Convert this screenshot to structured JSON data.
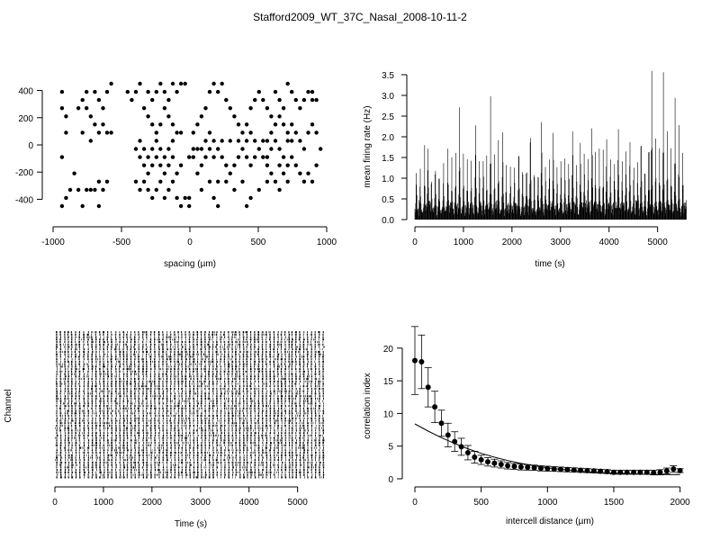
{
  "figure": {
    "title": "Stafford2009_WT_37C_Nasal_2008-10-11-2"
  },
  "chart_data": [
    {
      "id": "electrode-layout",
      "type": "scatter",
      "xlabel": "spacing (µm)",
      "ylabel": "",
      "xlim": [
        -1000,
        1000
      ],
      "ylim": [
        -450,
        450
      ],
      "xticks": [
        -1000,
        -500,
        0,
        500,
        1000
      ],
      "yticks": [
        -400,
        -200,
        0,
        200,
        400
      ],
      "grid": false,
      "points": [
        [
          -935,
          390
        ],
        [
          -935,
          270
        ],
        [
          -905,
          90
        ],
        [
          -905,
          210
        ],
        [
          -935,
          -90
        ],
        [
          -845,
          -210
        ],
        [
          -875,
          -330
        ],
        [
          -905,
          -390
        ],
        [
          -935,
          -450
        ],
        [
          -815,
          270
        ],
        [
          -785,
          330
        ],
        [
          -755,
          390
        ],
        [
          -755,
          270
        ],
        [
          -725,
          210
        ],
        [
          -695,
          390
        ],
        [
          -665,
          330
        ],
        [
          -635,
          270
        ],
        [
          -605,
          390
        ],
        [
          -575,
          450
        ],
        [
          -785,
          90
        ],
        [
          -725,
          30
        ],
        [
          -695,
          150
        ],
        [
          -665,
          90
        ],
        [
          -635,
          150
        ],
        [
          -605,
          90
        ],
        [
          -575,
          90
        ],
        [
          -815,
          -330
        ],
        [
          -755,
          -330
        ],
        [
          -725,
          -330
        ],
        [
          -695,
          -330
        ],
        [
          -665,
          -270
        ],
        [
          -635,
          -330
        ],
        [
          -605,
          -270
        ],
        [
          -785,
          -450
        ],
        [
          -665,
          -450
        ],
        [
          -455,
          390
        ],
        [
          -425,
          330
        ],
        [
          -395,
          390
        ],
        [
          -365,
          450
        ],
        [
          -305,
          390
        ],
        [
          -275,
          330
        ],
        [
          -245,
          390
        ],
        [
          -215,
          450
        ],
        [
          -185,
          390
        ],
        [
          -155,
          330
        ],
        [
          -125,
          450
        ],
        [
          -95,
          390
        ],
        [
          -65,
          450
        ],
        [
          -35,
          450
        ],
        [
          -335,
          270
        ],
        [
          -305,
          210
        ],
        [
          -275,
          150
        ],
        [
          -245,
          90
        ],
        [
          -215,
          150
        ],
        [
          -185,
          270
        ],
        [
          -155,
          210
        ],
        [
          -125,
          150
        ],
        [
          -95,
          90
        ],
        [
          -65,
          90
        ],
        [
          -395,
          -30
        ],
        [
          -365,
          30
        ],
        [
          -335,
          -30
        ],
        [
          -305,
          -90
        ],
        [
          -275,
          -30
        ],
        [
          -245,
          30
        ],
        [
          -215,
          -30
        ],
        [
          -185,
          -90
        ],
        [
          -155,
          -30
        ],
        [
          -125,
          30
        ],
        [
          -365,
          -90
        ],
        [
          -335,
          -150
        ],
        [
          -305,
          -210
        ],
        [
          -275,
          -150
        ],
        [
          -245,
          -90
        ],
        [
          -215,
          -150
        ],
        [
          -185,
          -210
        ],
        [
          -155,
          -150
        ],
        [
          -125,
          -90
        ],
        [
          -95,
          -210
        ],
        [
          -65,
          -150
        ],
        [
          -395,
          -270
        ],
        [
          -365,
          -330
        ],
        [
          -335,
          -270
        ],
        [
          -305,
          -330
        ],
        [
          -275,
          -390
        ],
        [
          -245,
          -330
        ],
        [
          -215,
          -270
        ],
        [
          -185,
          -390
        ],
        [
          -155,
          -330
        ],
        [
          -125,
          -270
        ],
        [
          -95,
          -390
        ],
        [
          -65,
          -450
        ],
        [
          -35,
          -390
        ],
        [
          -5,
          -450
        ],
        [
          -5,
          -390
        ],
        [
          25,
          90
        ],
        [
          55,
          150
        ],
        [
          85,
          210
        ],
        [
          115,
          270
        ],
        [
          145,
          390
        ],
        [
          175,
          450
        ],
        [
          205,
          390
        ],
        [
          235,
          450
        ],
        [
          265,
          330
        ],
        [
          295,
          270
        ],
        [
          325,
          210
        ],
        [
          355,
          150
        ],
        [
          385,
          90
        ],
        [
          415,
          150
        ],
        [
          445,
          270
        ],
        [
          475,
          330
        ],
        [
          505,
          390
        ],
        [
          535,
          330
        ],
        [
          565,
          270
        ],
        [
          595,
          210
        ],
        [
          55,
          -210
        ],
        [
          85,
          -150
        ],
        [
          115,
          -90
        ],
        [
          145,
          -30
        ],
        [
          175,
          -90
        ],
        [
          205,
          -30
        ],
        [
          235,
          -90
        ],
        [
          265,
          -150
        ],
        [
          295,
          -210
        ],
        [
          325,
          -150
        ],
        [
          355,
          -90
        ],
        [
          385,
          -30
        ],
        [
          415,
          -90
        ],
        [
          445,
          -150
        ],
        [
          475,
          -90
        ],
        [
          505,
          -30
        ],
        [
          535,
          -90
        ],
        [
          565,
          -150
        ],
        [
          595,
          -210
        ],
        [
          85,
          -330
        ],
        [
          145,
          -270
        ],
        [
          205,
          -270
        ],
        [
          265,
          -270
        ],
        [
          325,
          -330
        ],
        [
          385,
          -270
        ],
        [
          445,
          -390
        ],
        [
          505,
          -330
        ],
        [
          565,
          -270
        ],
        [
          625,
          -270
        ],
        [
          175,
          -390
        ],
        [
          205,
          -450
        ],
        [
          415,
          -450
        ],
        [
          625,
          390
        ],
        [
          655,
          330
        ],
        [
          685,
          270
        ],
        [
          715,
          450
        ],
        [
          745,
          390
        ],
        [
          775,
          330
        ],
        [
          805,
          270
        ],
        [
          835,
          330
        ],
        [
          865,
          390
        ],
        [
          895,
          330
        ],
        [
          925,
          330
        ],
        [
          895,
          390
        ],
        [
          655,
          210
        ],
        [
          685,
          150
        ],
        [
          715,
          90
        ],
        [
          745,
          150
        ],
        [
          775,
          90
        ],
        [
          805,
          30
        ],
        [
          835,
          -30
        ],
        [
          865,
          90
        ],
        [
          895,
          150
        ],
        [
          925,
          90
        ],
        [
          955,
          -30
        ],
        [
          655,
          -30
        ],
        [
          685,
          -90
        ],
        [
          715,
          -150
        ],
        [
          745,
          -90
        ],
        [
          775,
          -150
        ],
        [
          805,
          -210
        ],
        [
          835,
          -270
        ],
        [
          865,
          -210
        ],
        [
          895,
          -270
        ],
        [
          925,
          -150
        ],
        [
          655,
          -330
        ],
        [
          715,
          -270
        ],
        [
          595,
          90
        ],
        [
          625,
          150
        ],
        [
          565,
          30
        ],
        [
          535,
          30
        ],
        [
          475,
          30
        ],
        [
          445,
          90
        ],
        [
          415,
          30
        ],
        [
          355,
          30
        ],
        [
          295,
          30
        ],
        [
          235,
          30
        ],
        [
          175,
          30
        ],
        [
          145,
          90
        ],
        [
          115,
          30
        ],
        [
          85,
          -30
        ],
        [
          25,
          -90
        ],
        [
          55,
          -30
        ],
        [
          25,
          -30
        ],
        [
          -5,
          -90
        ],
        [
          655,
          -150
        ],
        [
          685,
          -210
        ],
        [
          715,
          30
        ],
        [
          745,
          30
        ],
        [
          625,
          30
        ],
        [
          595,
          -30
        ],
        [
          565,
          -90
        ]
      ]
    },
    {
      "id": "firing-rate",
      "type": "bar",
      "xlabel": "time (s)",
      "ylabel": "mean firing rate (Hz)",
      "xlim": [
        0,
        5600
      ],
      "ylim": [
        0,
        3.5
      ],
      "xticks": [
        0,
        1000,
        2000,
        3000,
        4000,
        5000
      ],
      "yticks": [
        0.0,
        0.5,
        1.0,
        1.5,
        2.0,
        2.5,
        3.0,
        3.5
      ],
      "ytick_labels": [
        "0.0",
        "0.5",
        "1.0",
        "1.5",
        "2.0",
        "2.5",
        "3.0",
        "3.5"
      ],
      "bin_width_s": 8,
      "peaks": [
        [
          30,
          1.3
        ],
        [
          110,
          1.4
        ],
        [
          200,
          1.7
        ],
        [
          270,
          2.05
        ],
        [
          340,
          1.2
        ],
        [
          420,
          1.6
        ],
        [
          500,
          1.4
        ],
        [
          590,
          1.5
        ],
        [
          680,
          1.65
        ],
        [
          760,
          1.4
        ],
        [
          840,
          1.5
        ],
        [
          920,
          2.6
        ],
        [
          1000,
          1.5
        ],
        [
          1080,
          1.35
        ],
        [
          1160,
          1.4
        ],
        [
          1250,
          2.75
        ],
        [
          1330,
          1.6
        ],
        [
          1410,
          1.7
        ],
        [
          1480,
          1.5
        ],
        [
          1560,
          2.85
        ],
        [
          1640,
          1.5
        ],
        [
          1720,
          1.8
        ],
        [
          1810,
          2.5
        ],
        [
          1880,
          1.3
        ],
        [
          1970,
          1.4
        ],
        [
          2050,
          1.4
        ],
        [
          2140,
          2.25
        ],
        [
          2220,
          1.6
        ],
        [
          2300,
          1.5
        ],
        [
          2380,
          2.75
        ],
        [
          2460,
          1.4
        ],
        [
          2540,
          1.5
        ],
        [
          2610,
          2.75
        ],
        [
          2690,
          1.5
        ],
        [
          2770,
          1.7
        ],
        [
          2850,
          2.55
        ],
        [
          2930,
          1.5
        ],
        [
          3010,
          1.6
        ],
        [
          3090,
          1.7
        ],
        [
          3170,
          1.55
        ],
        [
          3250,
          2.6
        ],
        [
          3330,
          1.5
        ],
        [
          3410,
          2.2
        ],
        [
          3490,
          1.8
        ],
        [
          3570,
          1.7
        ],
        [
          3650,
          2.65
        ],
        [
          3720,
          1.6
        ],
        [
          3800,
          1.6
        ],
        [
          3880,
          1.65
        ],
        [
          3950,
          2.2
        ],
        [
          4030,
          1.75
        ],
        [
          4110,
          1.6
        ],
        [
          4190,
          2.55
        ],
        [
          4270,
          1.6
        ],
        [
          4350,
          1.9
        ],
        [
          4430,
          2.25
        ],
        [
          4510,
          1.5
        ],
        [
          4590,
          1.55
        ],
        [
          4660,
          2.6
        ],
        [
          4740,
          1.5
        ],
        [
          4820,
          2.35
        ],
        [
          4880,
          3.55
        ],
        [
          4960,
          1.9
        ],
        [
          5040,
          1.7
        ],
        [
          5120,
          3.5
        ],
        [
          5200,
          2.0
        ],
        [
          5280,
          1.7
        ],
        [
          5360,
          2.8
        ],
        [
          5440,
          2.25
        ],
        [
          5520,
          1.6
        ]
      ]
    },
    {
      "id": "spike-raster",
      "type": "scatter",
      "xlabel": "Time (s)",
      "ylabel": "Channel",
      "xlim": [
        0,
        5600
      ],
      "xticks": [
        0,
        1000,
        2000,
        3000,
        4000,
        5000
      ],
      "channel_count": 60,
      "burst_times": [
        30,
        110,
        200,
        270,
        340,
        420,
        500,
        590,
        680,
        760,
        840,
        920,
        1000,
        1080,
        1160,
        1250,
        1330,
        1410,
        1480,
        1560,
        1640,
        1720,
        1810,
        1880,
        1970,
        2050,
        2140,
        2220,
        2300,
        2380,
        2460,
        2540,
        2610,
        2690,
        2770,
        2850,
        2930,
        3010,
        3090,
        3170,
        3250,
        3330,
        3410,
        3490,
        3570,
        3650,
        3720,
        3800,
        3880,
        3950,
        4030,
        4110,
        4190,
        4270,
        4350,
        4430,
        4510,
        4590,
        4660,
        4740,
        4820,
        4880,
        4960,
        5040,
        5120,
        5200,
        5280,
        5360,
        5440,
        5520
      ]
    },
    {
      "id": "correlation-index",
      "type": "scatter",
      "xlabel": "intercell distance (µm)",
      "ylabel": "correlation index",
      "xlim": [
        0,
        2050
      ],
      "ylim": [
        0,
        23
      ],
      "xticks": [
        0,
        500,
        1000,
        1500,
        2000
      ],
      "yticks": [
        0,
        5,
        10,
        15,
        20
      ],
      "x": [
        0,
        50,
        100,
        150,
        200,
        250,
        300,
        350,
        400,
        450,
        500,
        550,
        600,
        650,
        700,
        750,
        800,
        850,
        900,
        950,
        1000,
        1050,
        1100,
        1150,
        1200,
        1250,
        1300,
        1350,
        1400,
        1450,
        1500,
        1550,
        1600,
        1650,
        1700,
        1750,
        1800,
        1850,
        1900,
        1950,
        2000
      ],
      "y": [
        18.1,
        17.9,
        14.0,
        11.0,
        8.5,
        6.7,
        5.7,
        4.9,
        4.0,
        3.3,
        2.9,
        2.6,
        2.4,
        2.2,
        2.0,
        1.9,
        1.8,
        1.75,
        1.7,
        1.6,
        1.55,
        1.5,
        1.45,
        1.4,
        1.35,
        1.3,
        1.25,
        1.2,
        1.15,
        1.1,
        1.0,
        1.0,
        1.0,
        1.0,
        1.0,
        1.0,
        0.95,
        1.0,
        1.2,
        1.5,
        1.25
      ],
      "yerr": [
        5.2,
        4.1,
        3.0,
        2.4,
        2.0,
        1.8,
        1.5,
        1.3,
        1.1,
        0.9,
        0.7,
        0.65,
        0.6,
        0.55,
        0.5,
        0.45,
        0.45,
        0.42,
        0.4,
        0.4,
        0.38,
        0.36,
        0.35,
        0.34,
        0.33,
        0.32,
        0.31,
        0.3,
        0.3,
        0.3,
        0.3,
        0.3,
        0.3,
        0.3,
        0.3,
        0.3,
        0.35,
        0.4,
        0.45,
        0.5,
        0.3
      ],
      "fit_line": [
        [
          0,
          8.4
        ],
        [
          100,
          7.3
        ],
        [
          200,
          6.3
        ],
        [
          300,
          5.4
        ],
        [
          400,
          4.6
        ],
        [
          500,
          3.9
        ],
        [
          600,
          3.3
        ],
        [
          700,
          2.8
        ],
        [
          800,
          2.35
        ],
        [
          900,
          2.0
        ],
        [
          1000,
          1.7
        ],
        [
          1100,
          1.45
        ],
        [
          1200,
          1.25
        ],
        [
          1300,
          1.08
        ],
        [
          1400,
          0.95
        ],
        [
          1500,
          0.85
        ],
        [
          1600,
          0.78
        ],
        [
          1700,
          0.72
        ],
        [
          1800,
          0.68
        ],
        [
          1900,
          0.65
        ],
        [
          2000,
          0.63
        ]
      ]
    }
  ]
}
